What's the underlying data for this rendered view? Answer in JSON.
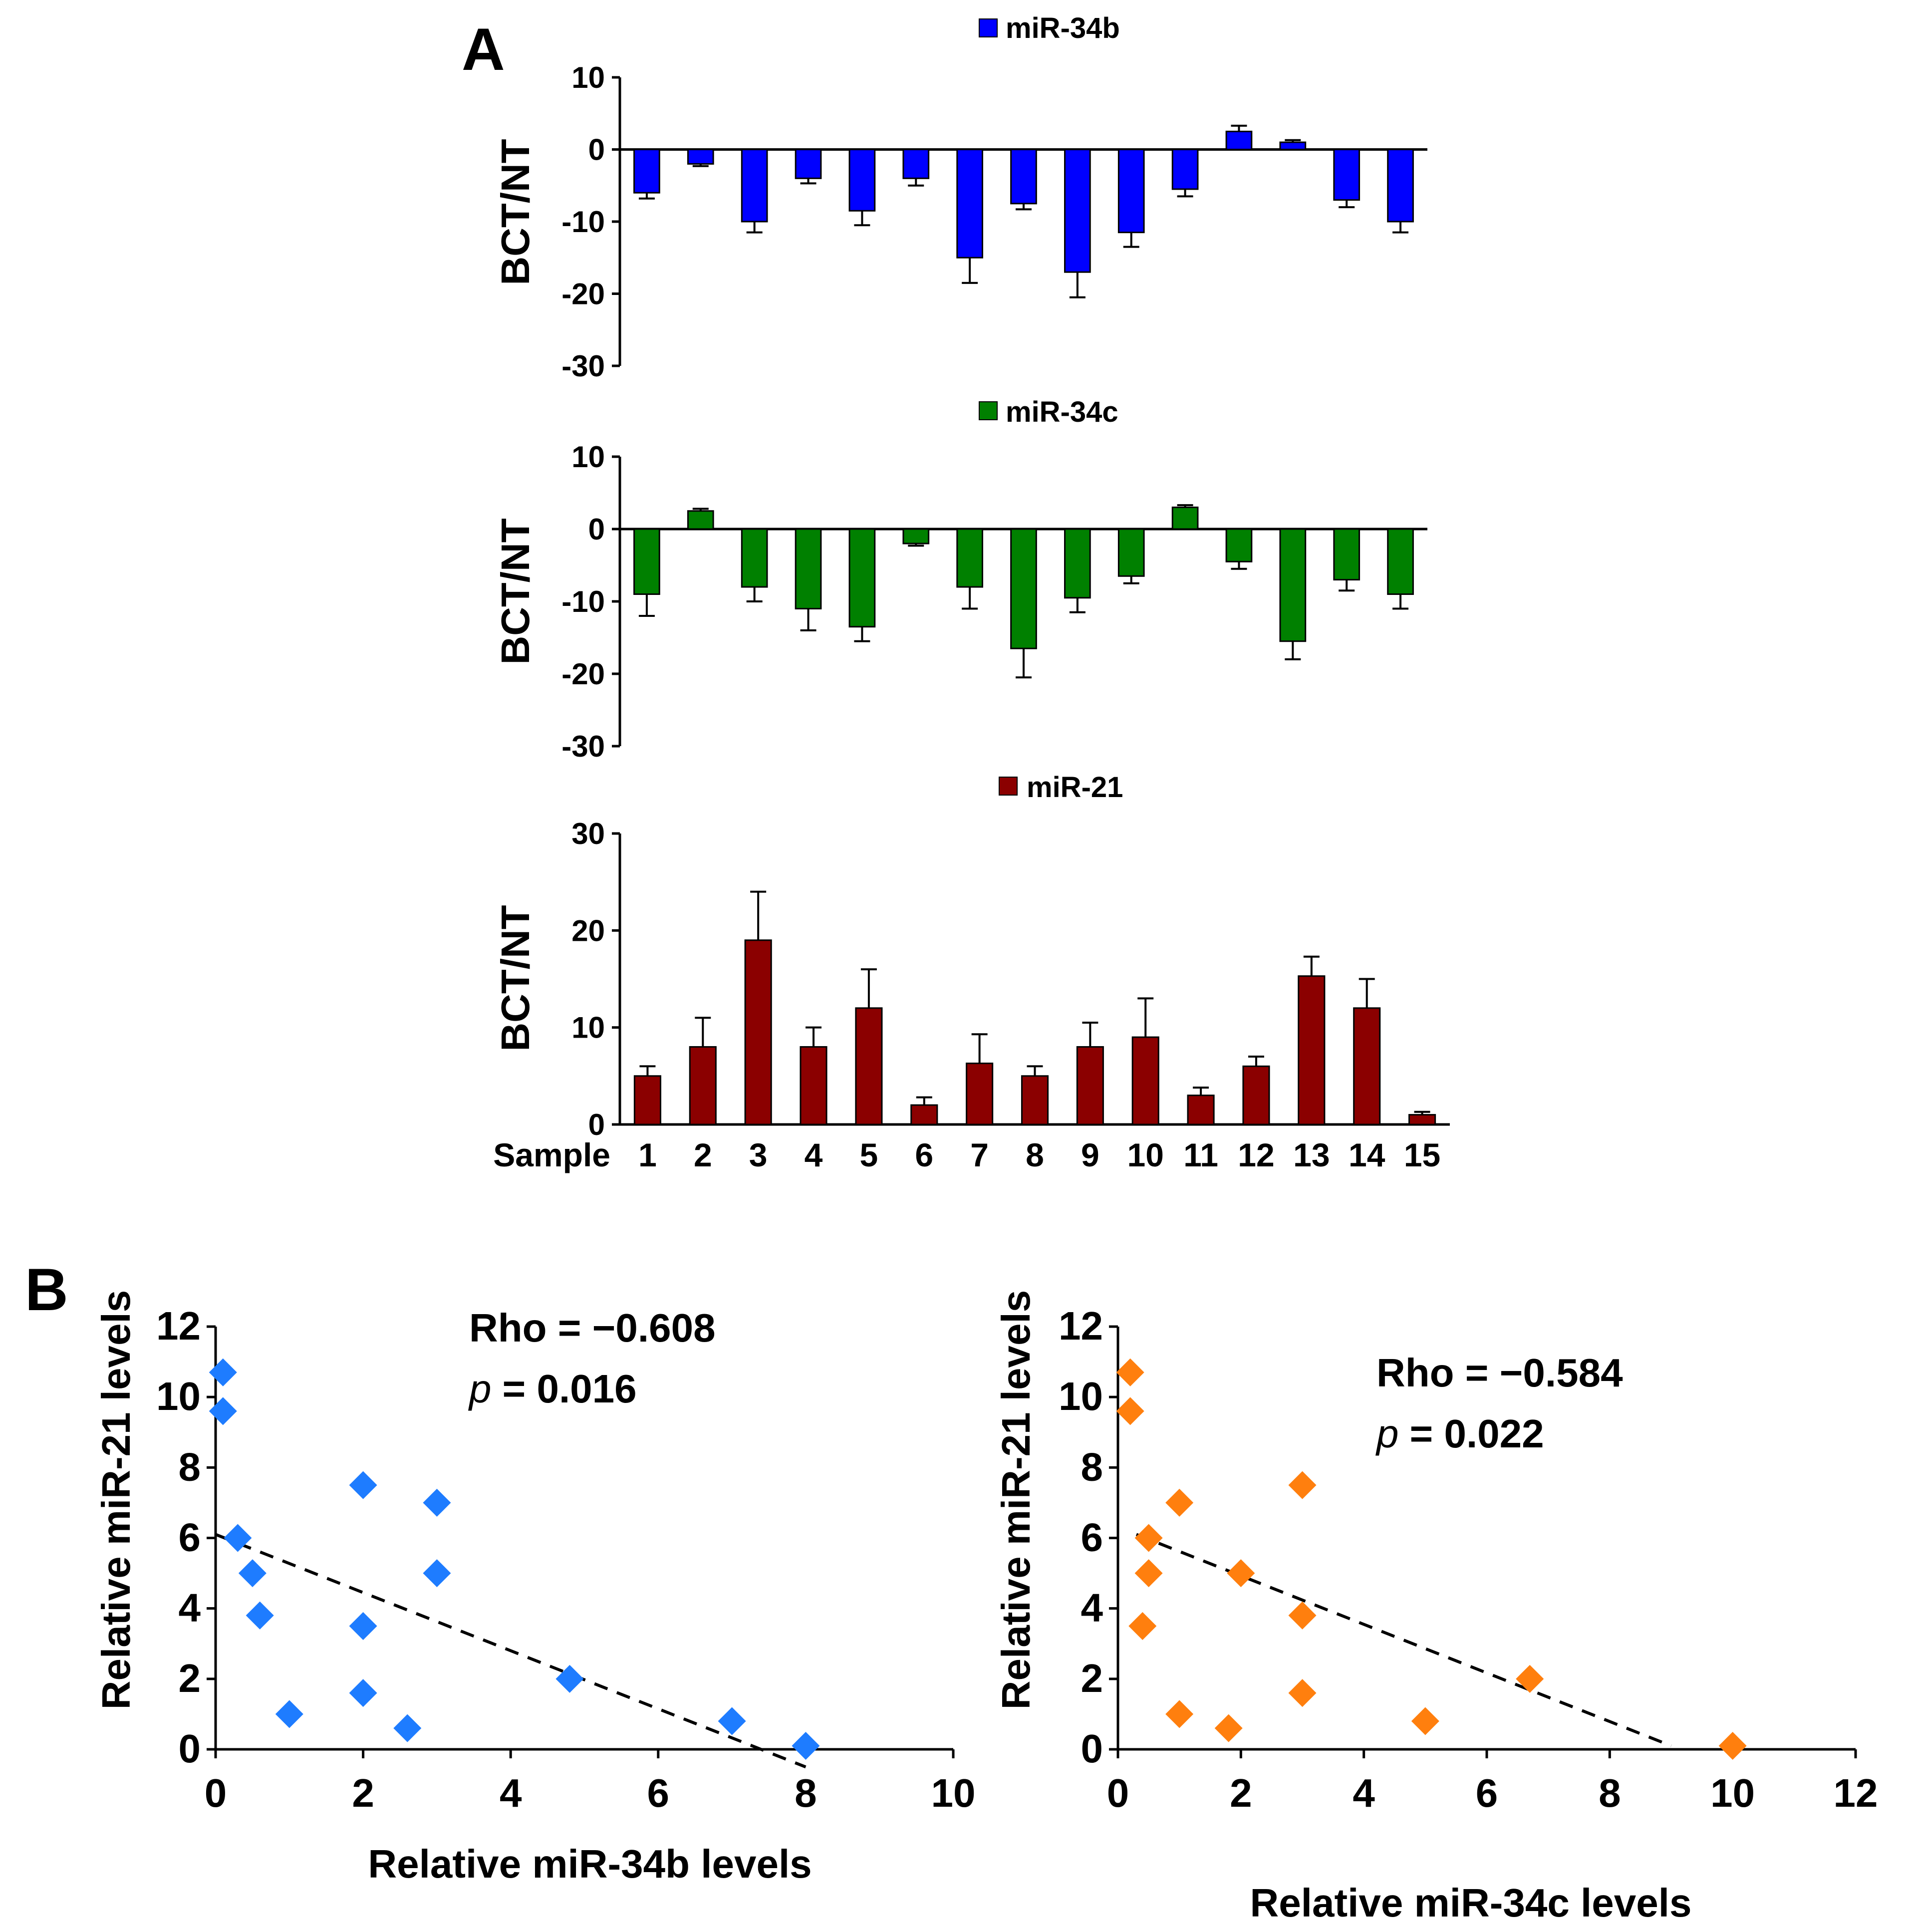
{
  "panel_labels": {
    "a": "A",
    "b": "B"
  },
  "chart_data": [
    {
      "type": "bar",
      "panel": "A",
      "legend": "miR-34b",
      "color": "#0000ff",
      "ylabel": "BCT/NT",
      "ylim": [
        -30,
        10
      ],
      "yticks": [
        10,
        0,
        -10,
        -20,
        -30
      ],
      "categories": [
        "1",
        "2",
        "3",
        "4",
        "5",
        "6",
        "7",
        "8",
        "9",
        "10",
        "11",
        "12",
        "13",
        "14",
        "15"
      ],
      "values": [
        -6,
        -2,
        -10,
        -4,
        -8.5,
        -4,
        -15,
        -7.5,
        -17,
        -11.5,
        -5.5,
        2.5,
        1,
        -7,
        -10
      ],
      "errors": [
        0.8,
        0.3,
        1.5,
        0.7,
        2,
        1,
        3.5,
        0.8,
        3.5,
        2,
        1,
        0.8,
        0.3,
        1,
        1.5
      ]
    },
    {
      "type": "bar",
      "panel": "A",
      "legend": "miR-34c",
      "color": "#008000",
      "ylabel": "BCT/NT",
      "ylim": [
        -30,
        10
      ],
      "yticks": [
        10,
        0,
        -10,
        -20,
        -30
      ],
      "categories": [
        "1",
        "2",
        "3",
        "4",
        "5",
        "6",
        "7",
        "8",
        "9",
        "10",
        "11",
        "12",
        "13",
        "14",
        "15"
      ],
      "values": [
        -9,
        2.5,
        -8,
        -11,
        -13.5,
        -2,
        -8,
        -16.5,
        -9.5,
        -6.5,
        3,
        -4.5,
        -15.5,
        -7,
        -9
      ],
      "errors": [
        3,
        0.3,
        2,
        3,
        2,
        0.3,
        3,
        4,
        2,
        1,
        0.3,
        1,
        2.5,
        1.5,
        2
      ]
    },
    {
      "type": "bar",
      "panel": "A",
      "legend": "miR-21",
      "color": "#8b0000",
      "ylabel": "BCT/NT",
      "xlabel": "Sample",
      "ylim": [
        0,
        30
      ],
      "yticks": [
        30,
        20,
        10,
        0
      ],
      "categories": [
        "1",
        "2",
        "3",
        "4",
        "5",
        "6",
        "7",
        "8",
        "9",
        "10",
        "11",
        "12",
        "13",
        "14",
        "15"
      ],
      "values": [
        5,
        8,
        19,
        8,
        12,
        2,
        6.3,
        5,
        8,
        9,
        3,
        6,
        15.3,
        12,
        1
      ],
      "errors": [
        1,
        3,
        5,
        2,
        4,
        0.8,
        3,
        1,
        2.5,
        4,
        0.8,
        1,
        2,
        3,
        0.3
      ]
    },
    {
      "type": "scatter",
      "panel": "B",
      "color": "#1e7cff",
      "xlabel": "Relative miR-34b levels",
      "ylabel": "Relative miR-21 levels",
      "xlim": [
        0,
        10
      ],
      "ylim": [
        0,
        12
      ],
      "xticks": [
        0,
        2,
        4,
        6,
        8,
        10
      ],
      "yticks": [
        0,
        2,
        4,
        6,
        8,
        10,
        12
      ],
      "points": [
        {
          "x": 0.1,
          "y": 10.7
        },
        {
          "x": 0.1,
          "y": 9.6
        },
        {
          "x": 0.3,
          "y": 6
        },
        {
          "x": 0.5,
          "y": 5
        },
        {
          "x": 0.6,
          "y": 3.8
        },
        {
          "x": 1,
          "y": 1
        },
        {
          "x": 2,
          "y": 7.5
        },
        {
          "x": 2,
          "y": 3.5
        },
        {
          "x": 2,
          "y": 1.6
        },
        {
          "x": 2.6,
          "y": 0.6
        },
        {
          "x": 3,
          "y": 7
        },
        {
          "x": 3,
          "y": 5
        },
        {
          "x": 4.8,
          "y": 2
        },
        {
          "x": 7,
          "y": 0.8
        },
        {
          "x": 8,
          "y": 0.1
        }
      ],
      "trend": {
        "x1": 0,
        "y1": 6.1,
        "x2": 8,
        "y2": -0.5
      },
      "stat_rho_label": "Rho = −0.608",
      "stat_p_symbol": "p",
      "stat_p_value": "= 0.016"
    },
    {
      "type": "scatter",
      "panel": "B",
      "color": "#ff7f0e",
      "xlabel": "Relative miR-34c levels",
      "ylabel": "Relative miR-21 levels",
      "xlim": [
        0,
        12
      ],
      "ylim": [
        0,
        12
      ],
      "xticks": [
        0,
        2,
        4,
        6,
        8,
        10,
        12
      ],
      "yticks": [
        0,
        2,
        4,
        6,
        8,
        10,
        12
      ],
      "points": [
        {
          "x": 0.2,
          "y": 10.7
        },
        {
          "x": 0.2,
          "y": 9.6
        },
        {
          "x": 0.5,
          "y": 6
        },
        {
          "x": 0.5,
          "y": 5
        },
        {
          "x": 0.4,
          "y": 3.5
        },
        {
          "x": 1,
          "y": 7
        },
        {
          "x": 1,
          "y": 1
        },
        {
          "x": 1.8,
          "y": 0.6
        },
        {
          "x": 2,
          "y": 5
        },
        {
          "x": 3,
          "y": 7.5
        },
        {
          "x": 3,
          "y": 3.8
        },
        {
          "x": 3,
          "y": 1.6
        },
        {
          "x": 5,
          "y": 0.8
        },
        {
          "x": 6.7,
          "y": 2
        },
        {
          "x": 10,
          "y": 0.1
        }
      ],
      "trend": {
        "x1": 0.3,
        "y1": 6.1,
        "x2": 9,
        "y2": 0.1
      },
      "stat_rho_label": "Rho = −0.584",
      "stat_p_symbol": "p",
      "stat_p_value": "= 0.022"
    }
  ]
}
